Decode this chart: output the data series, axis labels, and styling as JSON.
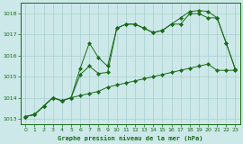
{
  "title": "Graphe pression niveau de la mer (hPa)",
  "bg_color": "#cce8e8",
  "grid_color": "#aacfcf",
  "line_color": "#1a6b1a",
  "xlim": [
    -0.5,
    23.5
  ],
  "ylim": [
    1012.75,
    1018.5
  ],
  "yticks": [
    1013,
    1014,
    1015,
    1016,
    1017,
    1018
  ],
  "xticks": [
    0,
    1,
    2,
    3,
    4,
    5,
    6,
    7,
    8,
    9,
    10,
    11,
    12,
    13,
    14,
    15,
    16,
    17,
    18,
    19,
    20,
    21,
    22,
    23
  ],
  "line1_x": [
    0,
    1,
    2,
    3,
    4,
    5,
    6,
    7,
    8,
    9,
    10,
    11,
    12,
    13,
    14,
    15,
    16,
    17,
    18,
    19,
    20,
    21,
    22,
    23
  ],
  "line1_y": [
    1013.1,
    1013.2,
    1013.6,
    1014.0,
    1013.85,
    1014.0,
    1014.1,
    1014.2,
    1014.3,
    1014.5,
    1014.6,
    1014.7,
    1014.8,
    1014.9,
    1015.0,
    1015.1,
    1015.2,
    1015.3,
    1015.4,
    1015.5,
    1015.6,
    1015.3,
    1015.3,
    1015.3
  ],
  "line2_x": [
    0,
    1,
    2,
    3,
    4,
    5,
    6,
    7,
    8,
    9,
    10,
    11,
    12,
    13,
    14,
    15,
    16,
    17,
    18,
    19,
    20,
    21,
    22,
    23
  ],
  "line2_y": [
    1013.1,
    1013.2,
    1013.6,
    1014.0,
    1013.85,
    1014.0,
    1015.4,
    1016.6,
    1015.9,
    1015.5,
    1017.3,
    1017.5,
    1017.5,
    1017.3,
    1017.1,
    1017.2,
    1017.5,
    1017.8,
    1018.1,
    1018.15,
    1018.1,
    1017.8,
    1016.6,
    1015.35
  ],
  "line3_x": [
    0,
    1,
    2,
    3,
    4,
    5,
    6,
    7,
    8,
    9,
    10,
    11,
    12,
    13,
    14,
    15,
    16,
    17,
    18,
    19,
    20,
    21,
    22,
    23
  ],
  "line3_y": [
    1013.1,
    1013.2,
    1013.6,
    1014.0,
    1013.85,
    1014.0,
    1015.1,
    1015.5,
    1015.15,
    1015.2,
    1017.3,
    1017.5,
    1017.5,
    1017.3,
    1017.1,
    1017.2,
    1017.5,
    1017.5,
    1018.0,
    1018.0,
    1017.8,
    1017.8,
    1016.6,
    1015.35
  ]
}
